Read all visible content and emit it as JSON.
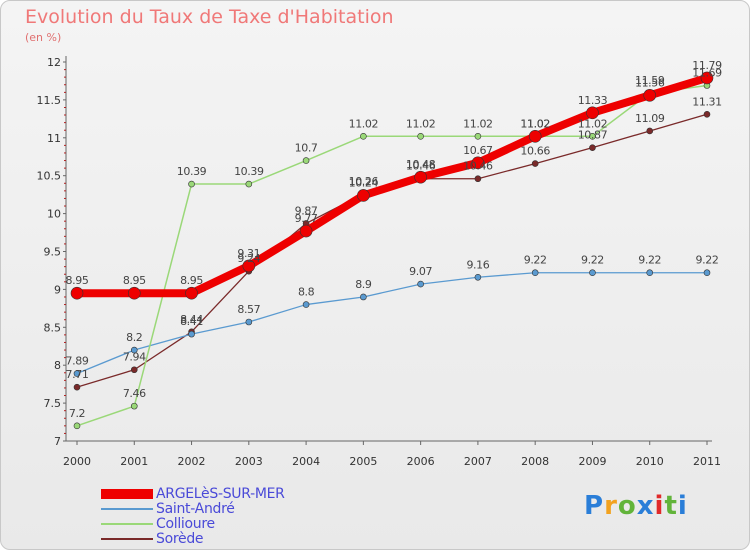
{
  "header": {
    "title": "Evolution du Taux de Taxe d'Habitation",
    "subtitle": "(en %)"
  },
  "logo": {
    "text": "Proxiti",
    "colors": [
      "#2a7ed8",
      "#f2a21f",
      "#62b43a",
      "#2a7ed8",
      "#e02a2a",
      "#62b43a",
      "#2a7ed8"
    ]
  },
  "chart_data": {
    "type": "line",
    "x": [
      "2000",
      "2001",
      "2002",
      "2003",
      "2004",
      "2005",
      "2006",
      "2007",
      "2008",
      "2009",
      "2010",
      "2011"
    ],
    "ylim": [
      7,
      12
    ],
    "yticks": [
      "7",
      "7.5",
      "8",
      "8.5",
      "9",
      "9.5",
      "10",
      "10.5",
      "11",
      "11.5",
      "12"
    ],
    "grid": false,
    "legend_position": "bottom-left",
    "series": [
      {
        "name": "Sorède",
        "color": "#7a2a2a",
        "width": 1.3,
        "marker": 3,
        "values": [
          7.71,
          7.94,
          8.44,
          9.24,
          9.87,
          10.26,
          10.46,
          10.46,
          10.66,
          10.87,
          11.09,
          11.31
        ]
      },
      {
        "name": "Saint-André",
        "color": "#5a9ad0",
        "width": 1.3,
        "marker": 3,
        "values": [
          7.89,
          8.2,
          8.41,
          8.57,
          8.8,
          8.9,
          9.07,
          9.16,
          9.22,
          9.22,
          9.22,
          9.22
        ]
      },
      {
        "name": "Collioure",
        "color": "#9ad878",
        "width": 1.5,
        "marker": 3,
        "values": [
          7.2,
          7.46,
          10.39,
          10.39,
          10.7,
          11.02,
          11.02,
          11.02,
          11.02,
          11.02,
          11.59,
          11.69
        ]
      },
      {
        "name": "ARGELèS-SUR-MER",
        "color": "#ee0000",
        "width": 8,
        "marker": 6,
        "values": [
          8.95,
          8.95,
          8.95,
          9.31,
          9.77,
          10.24,
          10.48,
          10.67,
          11.02,
          11.33,
          11.56,
          11.79
        ]
      }
    ],
    "legend_order": [
      "ARGELèS-SUR-MER",
      "Saint-André",
      "Collioure",
      "Sorède"
    ]
  }
}
